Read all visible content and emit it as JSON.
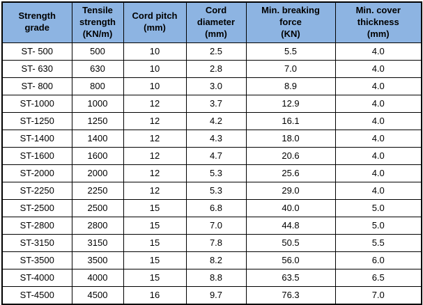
{
  "table": {
    "header_bg": "#8DB4E2",
    "border_color": "#000000",
    "columns": [
      "Strength\ngrade",
      "Tensile\nstrength\n(KN/m)",
      "Cord pitch\n(mm)",
      "Cord\ndiameter\n(mm)",
      "Min. breaking\nforce\n(KN)",
      "Min. cover\nthickness\n(mm)"
    ],
    "rows": [
      [
        "ST- 500",
        "500",
        "10",
        "2.5",
        "5.5",
        "4.0"
      ],
      [
        "ST- 630",
        "630",
        "10",
        "2.8",
        "7.0",
        "4.0"
      ],
      [
        "ST- 800",
        "800",
        "10",
        "3.0",
        "8.9",
        "4.0"
      ],
      [
        "ST-1000",
        "1000",
        "12",
        "3.7",
        "12.9",
        "4.0"
      ],
      [
        "ST-1250",
        "1250",
        "12",
        "4.2",
        "16.1",
        "4.0"
      ],
      [
        "ST-1400",
        "1400",
        "12",
        "4.3",
        "18.0",
        "4.0"
      ],
      [
        "ST-1600",
        "1600",
        "12",
        "4.7",
        "20.6",
        "4.0"
      ],
      [
        "ST-2000",
        "2000",
        "12",
        "5.3",
        "25.6",
        "4.0"
      ],
      [
        "ST-2250",
        "2250",
        "12",
        "5.3",
        "29.0",
        "4.0"
      ],
      [
        "ST-2500",
        "2500",
        "15",
        "6.8",
        "40.0",
        "5.0"
      ],
      [
        "ST-2800",
        "2800",
        "15",
        "7.0",
        "44.8",
        "5.0"
      ],
      [
        "ST-3150",
        "3150",
        "15",
        "7.8",
        "50.5",
        "5.5"
      ],
      [
        "ST-3500",
        "3500",
        "15",
        "8.2",
        "56.0",
        "6.0"
      ],
      [
        "ST-4000",
        "4000",
        "15",
        "8.8",
        "63.5",
        "6.5"
      ],
      [
        "ST-4500",
        "4500",
        "16",
        "9.7",
        "76.3",
        "7.0"
      ]
    ]
  }
}
